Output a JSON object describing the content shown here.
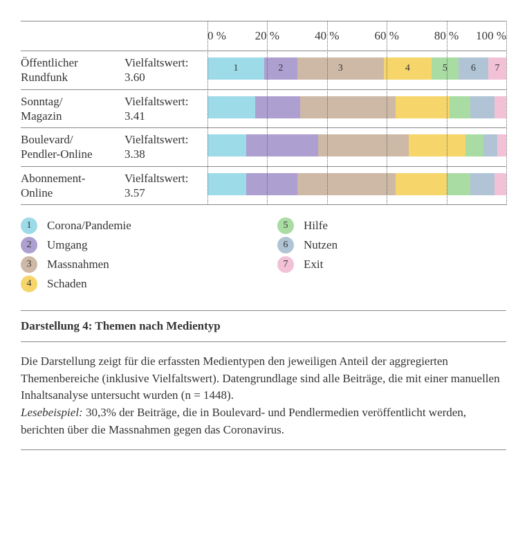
{
  "chart": {
    "type": "stacked-bar-horizontal",
    "x_axis": {
      "min": 0,
      "max": 100,
      "ticks": [
        0,
        20,
        40,
        60,
        80,
        100
      ],
      "tick_labels": [
        "0 %",
        "20 %",
        "40 %",
        "60 %",
        "80 %",
        "100 %"
      ],
      "grid_style": "dotted",
      "grid_color": "#666666"
    },
    "border_color": "#888888",
    "background_color": "#ffffff",
    "label_fontsize": 17,
    "tick_fontsize": 17,
    "categories": [
      {
        "id": 1,
        "name": "Corona/Pandemie",
        "color": "#9edbe9"
      },
      {
        "id": 2,
        "name": "Umgang",
        "color": "#ada0d0"
      },
      {
        "id": 3,
        "name": "Massnahmen",
        "color": "#cdb9a6"
      },
      {
        "id": 4,
        "name": "Schaden",
        "color": "#f6d66b"
      },
      {
        "id": 5,
        "name": "Hilfe",
        "color": "#a9dca3"
      },
      {
        "id": 6,
        "name": "Nutzen",
        "color": "#b1c4d6"
      },
      {
        "id": 7,
        "name": "Exit",
        "color": "#f3c1d6"
      }
    ],
    "vielfalt_label": "Vielfaltswert:",
    "rows": [
      {
        "label_line1": "Öffentlicher",
        "label_line2": "Rundfunk",
        "vielfalt": "3.60",
        "show_numbers": true,
        "values": [
          19,
          11,
          29,
          16,
          9,
          10,
          6
        ]
      },
      {
        "label_line1": "Sonntag/",
        "label_line2": "Magazin",
        "vielfalt": "3.41",
        "show_numbers": false,
        "values": [
          16,
          15,
          32,
          18,
          7,
          8,
          4
        ]
      },
      {
        "label_line1": "Boulevard/",
        "label_line2": "Pendler-Online",
        "vielfalt": "3.38",
        "show_numbers": false,
        "values": [
          13,
          24,
          30.3,
          19,
          6,
          4.7,
          3
        ]
      },
      {
        "label_line1": "Abonnement-",
        "label_line2": "Online",
        "vielfalt": "3.57",
        "show_numbers": false,
        "values": [
          13,
          17,
          33,
          17,
          8,
          8,
          4
        ]
      }
    ]
  },
  "legend_columns": [
    [
      1,
      2,
      3,
      4
    ],
    [
      5,
      6,
      7
    ]
  ],
  "caption": "Darstellung 4: Themen nach Medientyp",
  "description": {
    "p1": "Die Darstellung zeigt für die erfassten Medientypen den jeweiligen Anteil der aggregierten Themenbereiche (inklusive Vielfaltswert). Datengrundlage sind alle Beiträge, die mit einer manuellen Inhaltsanalyse untersucht wurden (n = 1448).",
    "lesebeispiel_label": "Lesebeispiel:",
    "lesebeispiel_text": " 30,3% der Beiträge, die in Boulevard- und Pendlermedien veröffentlicht werden, berichten über die Massnahmen gegen das Coronavirus."
  }
}
